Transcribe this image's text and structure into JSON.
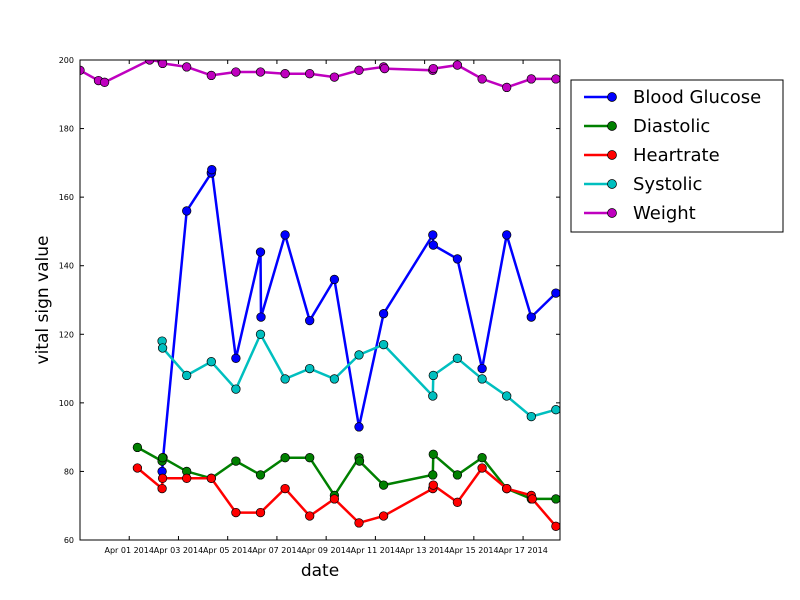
{
  "chart_data": {
    "type": "line",
    "title": "",
    "xlabel": "date",
    "ylabel": "vital sign value",
    "xlim": [
      "2014-03-30",
      "2014-04-18T12:00"
    ],
    "ylim": [
      60,
      200
    ],
    "y_ticks": [
      60,
      80,
      100,
      120,
      140,
      160,
      180,
      200
    ],
    "x_ticks": [
      {
        "date": "2014-04-01",
        "label": "Apr 01 2014"
      },
      {
        "date": "2014-04-03",
        "label": "Apr 03 2014"
      },
      {
        "date": "2014-04-05",
        "label": "Apr 05 2014"
      },
      {
        "date": "2014-04-07",
        "label": "Apr 07 2014"
      },
      {
        "date": "2014-04-09",
        "label": "Apr 09 2014"
      },
      {
        "date": "2014-04-11",
        "label": "Apr 11 2014"
      },
      {
        "date": "2014-04-13",
        "label": "Apr 13 2014"
      },
      {
        "date": "2014-04-15",
        "label": "Apr 15 2014"
      },
      {
        "date": "2014-04-17",
        "label": "Apr 17 2014"
      }
    ],
    "grid": false,
    "legend_position": "outside-right",
    "series": [
      {
        "name": "Blood Glucose",
        "color": "#0000ff",
        "points": [
          [
            "2014-04-02T08:00",
            80
          ],
          [
            "2014-04-02T09:00",
            84
          ],
          [
            "2014-04-03T08:00",
            156
          ],
          [
            "2014-04-04T08:00",
            167
          ],
          [
            "2014-04-04T08:30",
            168
          ],
          [
            "2014-04-05T08:00",
            113
          ],
          [
            "2014-04-06T08:00",
            144
          ],
          [
            "2014-04-06T08:30",
            125
          ],
          [
            "2014-04-07T08:00",
            149
          ],
          [
            "2014-04-08T08:00",
            124
          ],
          [
            "2014-04-09T08:00",
            136
          ],
          [
            "2014-04-10T08:00",
            93
          ],
          [
            "2014-04-11T08:00",
            126
          ],
          [
            "2014-04-13T08:00",
            149
          ],
          [
            "2014-04-13T08:30",
            146
          ],
          [
            "2014-04-14T08:00",
            142
          ],
          [
            "2014-04-15T08:00",
            110
          ],
          [
            "2014-04-16T08:00",
            149
          ],
          [
            "2014-04-17T08:00",
            125
          ],
          [
            "2014-04-18T08:00",
            132
          ]
        ]
      },
      {
        "name": "Diastolic",
        "color": "#008000",
        "points": [
          [
            "2014-04-01T08:00",
            87
          ],
          [
            "2014-04-02T08:00",
            83
          ],
          [
            "2014-04-02T08:30",
            84
          ],
          [
            "2014-04-03T08:00",
            80
          ],
          [
            "2014-04-04T08:00",
            78
          ],
          [
            "2014-04-05T08:00",
            83
          ],
          [
            "2014-04-06T08:00",
            79
          ],
          [
            "2014-04-07T08:00",
            84
          ],
          [
            "2014-04-08T08:00",
            84
          ],
          [
            "2014-04-09T08:00",
            73
          ],
          [
            "2014-04-10T08:00",
            84
          ],
          [
            "2014-04-10T08:30",
            83
          ],
          [
            "2014-04-11T08:00",
            76
          ],
          [
            "2014-04-13T08:00",
            79
          ],
          [
            "2014-04-13T08:30",
            85
          ],
          [
            "2014-04-14T08:00",
            79
          ],
          [
            "2014-04-15T08:00",
            84
          ],
          [
            "2014-04-16T08:00",
            75
          ],
          [
            "2014-04-17T08:00",
            72
          ],
          [
            "2014-04-18T08:00",
            72
          ]
        ]
      },
      {
        "name": "Heartrate",
        "color": "#ff0000",
        "points": [
          [
            "2014-04-01T08:00",
            81
          ],
          [
            "2014-04-02T08:00",
            75
          ],
          [
            "2014-04-02T08:30",
            78
          ],
          [
            "2014-04-03T08:00",
            78
          ],
          [
            "2014-04-04T08:00",
            78
          ],
          [
            "2014-04-05T08:00",
            68
          ],
          [
            "2014-04-06T08:00",
            68
          ],
          [
            "2014-04-07T08:00",
            75
          ],
          [
            "2014-04-08T08:00",
            67
          ],
          [
            "2014-04-09T08:00",
            72
          ],
          [
            "2014-04-10T08:00",
            65
          ],
          [
            "2014-04-11T08:00",
            67
          ],
          [
            "2014-04-13T08:00",
            75
          ],
          [
            "2014-04-13T08:30",
            76
          ],
          [
            "2014-04-14T08:00",
            71
          ],
          [
            "2014-04-15T08:00",
            81
          ],
          [
            "2014-04-16T08:00",
            75
          ],
          [
            "2014-04-17T08:00",
            73
          ],
          [
            "2014-04-17T09:00",
            72
          ],
          [
            "2014-04-18T08:00",
            64
          ]
        ]
      },
      {
        "name": "Systolic",
        "color": "#00bfbf",
        "points": [
          [
            "2014-04-02T08:00",
            118
          ],
          [
            "2014-04-02T08:30",
            116
          ],
          [
            "2014-04-03T08:00",
            108
          ],
          [
            "2014-04-04T08:00",
            112
          ],
          [
            "2014-04-05T08:00",
            104
          ],
          [
            "2014-04-06T08:00",
            120
          ],
          [
            "2014-04-07T08:00",
            107
          ],
          [
            "2014-04-08T08:00",
            110
          ],
          [
            "2014-04-09T08:00",
            107
          ],
          [
            "2014-04-10T08:00",
            114
          ],
          [
            "2014-04-11T08:00",
            117
          ],
          [
            "2014-04-13T08:00",
            102
          ],
          [
            "2014-04-13T08:30",
            108
          ],
          [
            "2014-04-14T08:00",
            113
          ],
          [
            "2014-04-15T08:00",
            107
          ],
          [
            "2014-04-16T08:00",
            102
          ],
          [
            "2014-04-17T08:00",
            96
          ],
          [
            "2014-04-18T08:00",
            98
          ]
        ]
      },
      {
        "name": "Weight",
        "color": "#bf00bf",
        "points": [
          [
            "2014-03-30T00:00",
            197
          ],
          [
            "2014-03-30T18:00",
            194
          ],
          [
            "2014-03-31T00:00",
            193.5
          ],
          [
            "2014-04-01T20:00",
            200
          ],
          [
            "2014-04-02T08:00",
            199.5
          ],
          [
            "2014-04-02T08:30",
            199
          ],
          [
            "2014-04-03T08:00",
            198
          ],
          [
            "2014-04-04T08:00",
            195.5
          ],
          [
            "2014-04-05T08:00",
            196.5
          ],
          [
            "2014-04-06T08:00",
            196.5
          ],
          [
            "2014-04-07T08:00",
            196
          ],
          [
            "2014-04-08T08:00",
            196
          ],
          [
            "2014-04-09T08:00",
            195
          ],
          [
            "2014-04-10T08:00",
            197
          ],
          [
            "2014-04-11T08:00",
            198
          ],
          [
            "2014-04-11T09:00",
            197.5
          ],
          [
            "2014-04-13T08:00",
            197
          ],
          [
            "2014-04-13T08:30",
            197.5
          ],
          [
            "2014-04-14T08:00",
            198.5
          ],
          [
            "2014-04-15T08:00",
            194.5
          ],
          [
            "2014-04-16T08:00",
            192
          ],
          [
            "2014-04-17T08:00",
            194.5
          ],
          [
            "2014-04-18T08:00",
            194.5
          ]
        ]
      }
    ]
  }
}
